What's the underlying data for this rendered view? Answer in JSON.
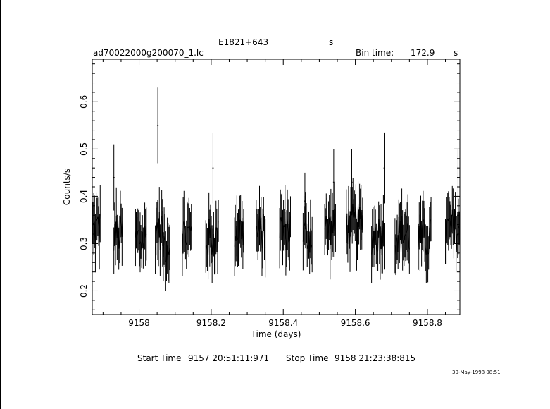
{
  "header": {
    "object_name": "E1821+643",
    "object_unit": "s",
    "file_name": "ad70022000g200070_1.lc",
    "bin_label": "Bin time:",
    "bin_value": "172.9",
    "bin_unit": "s"
  },
  "footer": {
    "start_label": "Start Time",
    "start_value": "9157 20:51:11:971",
    "stop_label": "Stop Time",
    "stop_value": "9158 21:23:38:815",
    "date_stamp": "30-May-1998 08:51"
  },
  "chart_data": {
    "type": "line",
    "xlabel": "Time (days)",
    "ylabel": "Counts/s",
    "xlim": [
      9157.87,
      9158.89
    ],
    "ylim": [
      0.15,
      0.69
    ],
    "xticks": [
      9158,
      9158.2,
      9158.4,
      9158.6,
      9158.8
    ],
    "xtick_labels": [
      "9158",
      "9158.2",
      "9158.4",
      "9158.6",
      "9158.8"
    ],
    "yticks": [
      0.2,
      0.3,
      0.4,
      0.5,
      0.6
    ],
    "ytick_labels": [
      "0.2",
      "0.3",
      "0.4",
      "0.5",
      "0.6"
    ],
    "grid": false,
    "segments": [
      {
        "x_start": 9157.872,
        "x_end": 9157.892,
        "mean": 0.33
      },
      {
        "x_start": 9157.93,
        "x_end": 9157.955,
        "mean": 0.32
      },
      {
        "x_start": 9157.99,
        "x_end": 9158.02,
        "mean": 0.31
      },
      {
        "x_start": 9158.045,
        "x_end": 9158.065,
        "mean": 0.33
      },
      {
        "x_start": 9158.065,
        "x_end": 9158.085,
        "mean": 0.3
      },
      {
        "x_start": 9158.12,
        "x_end": 9158.145,
        "mean": 0.32
      },
      {
        "x_start": 9158.185,
        "x_end": 9158.22,
        "mean": 0.31
      },
      {
        "x_start": 9158.265,
        "x_end": 9158.29,
        "mean": 0.33
      },
      {
        "x_start": 9158.325,
        "x_end": 9158.35,
        "mean": 0.32
      },
      {
        "x_start": 9158.39,
        "x_end": 9158.42,
        "mean": 0.33
      },
      {
        "x_start": 9158.455,
        "x_end": 9158.48,
        "mean": 0.32
      },
      {
        "x_start": 9158.515,
        "x_end": 9158.545,
        "mean": 0.33
      },
      {
        "x_start": 9158.575,
        "x_end": 9158.62,
        "mean": 0.34
      },
      {
        "x_start": 9158.645,
        "x_end": 9158.68,
        "mean": 0.32
      },
      {
        "x_start": 9158.71,
        "x_end": 9158.75,
        "mean": 0.32
      },
      {
        "x_start": 9158.775,
        "x_end": 9158.81,
        "mean": 0.31
      },
      {
        "x_start": 9158.85,
        "x_end": 9158.888,
        "mean": 0.33
      }
    ],
    "spikes": [
      {
        "x": 9158.052,
        "y": 0.55,
        "err": 0.08
      },
      {
        "x": 9157.93,
        "y": 0.44,
        "err": 0.07
      },
      {
        "x": 9158.205,
        "y": 0.46,
        "err": 0.075
      },
      {
        "x": 9158.46,
        "y": 0.39,
        "err": 0.06
      },
      {
        "x": 9158.68,
        "y": 0.46,
        "err": 0.075
      },
      {
        "x": 9158.54,
        "y": 0.43,
        "err": 0.07
      },
      {
        "x": 9158.59,
        "y": 0.43,
        "err": 0.07
      },
      {
        "x": 9158.885,
        "y": 0.42,
        "err": 0.08
      }
    ]
  }
}
